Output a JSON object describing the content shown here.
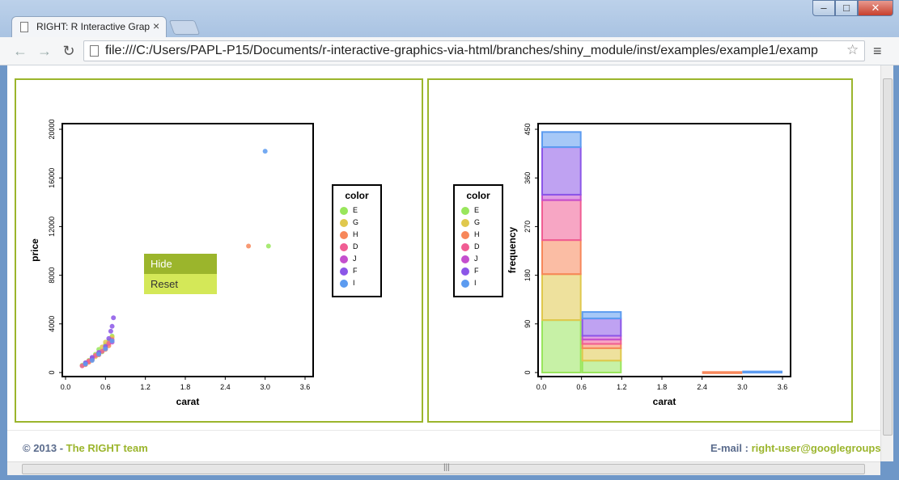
{
  "window": {
    "tab_title": "RIGHT: R Interactive Grapl",
    "url": "file:///C:/Users/PAPL-P15/Documents/r-interactive-graphics-via-html/branches/shiny_module/inst/examples/example1/examp"
  },
  "colors": {
    "E": "#99e65c",
    "G": "#e0c84d",
    "H": "#f7875a",
    "D": "#f05d93",
    "J": "#c44fce",
    "F": "#8b56e8",
    "I": "#5c9bf0",
    "panel_border": "#9bb52c",
    "footer_blue": "#5a6b8c",
    "footer_green": "#9bb52c"
  },
  "scatter": {
    "ylabel": "price",
    "xlabel": "carat",
    "legend_title": "color",
    "legend": [
      "E",
      "G",
      "H",
      "D",
      "J",
      "F",
      "I"
    ],
    "context_menu": {
      "hide": "Hide",
      "reset": "Reset"
    }
  },
  "histogram": {
    "ylabel": "frequency",
    "xlabel": "carat",
    "legend_title": "color",
    "legend": [
      "E",
      "G",
      "H",
      "D",
      "J",
      "F",
      "I"
    ]
  },
  "footer": {
    "copyright_prefix": "© 2013 - ",
    "team": "The RIGHT team",
    "email_label": "E-mail : ",
    "email": "right-user@googlegroups."
  },
  "chart_data": [
    {
      "type": "scatter",
      "xlabel": "carat",
      "ylabel": "price",
      "xlim": [
        0,
        3.6
      ],
      "ylim": [
        0,
        20000
      ],
      "x_ticks": [
        "0.0",
        "0.6",
        "1.2",
        "1.8",
        "2.4",
        "3.0",
        "3.6"
      ],
      "y_ticks": [
        "0",
        "4000",
        "8000",
        "12000",
        "16000",
        "20000"
      ],
      "legend_title": "color",
      "series": [
        {
          "name": "E",
          "points": [
            [
              0.25,
              600
            ],
            [
              0.3,
              800
            ],
            [
              0.35,
              1000
            ],
            [
              0.45,
              1500
            ],
            [
              0.55,
              1700
            ],
            [
              0.6,
              2300
            ],
            [
              0.65,
              2600
            ],
            [
              0.7,
              3000
            ],
            [
              0.4,
              1200
            ],
            [
              0.5,
              1900
            ],
            [
              3.05,
              10400
            ]
          ]
        },
        {
          "name": "G",
          "points": [
            [
              0.3,
              700
            ],
            [
              0.35,
              900
            ],
            [
              0.45,
              1300
            ],
            [
              0.5,
              1600
            ],
            [
              0.55,
              2100
            ],
            [
              0.6,
              2500
            ],
            [
              0.7,
              2900
            ],
            [
              0.4,
              1100
            ]
          ]
        },
        {
          "name": "H",
          "points": [
            [
              0.3,
              650
            ],
            [
              0.4,
              1050
            ],
            [
              0.5,
              1450
            ],
            [
              0.6,
              1900
            ],
            [
              0.65,
              2200
            ],
            [
              0.35,
              850
            ],
            [
              2.75,
              10400
            ]
          ]
        },
        {
          "name": "D",
          "points": [
            [
              0.25,
              550
            ],
            [
              0.35,
              950
            ],
            [
              0.45,
              1400
            ],
            [
              0.55,
              1750
            ],
            [
              0.65,
              2400
            ],
            [
              0.7,
              2700
            ]
          ]
        },
        {
          "name": "J",
          "points": [
            [
              0.3,
              750
            ],
            [
              0.4,
              1150
            ],
            [
              0.5,
              1550
            ],
            [
              0.6,
              2000
            ],
            [
              0.7,
              2500
            ]
          ]
        },
        {
          "name": "F",
          "points": [
            [
              0.3,
              800
            ],
            [
              0.4,
              1250
            ],
            [
              0.5,
              1650
            ],
            [
              0.6,
              2150
            ],
            [
              0.65,
              2800
            ],
            [
              0.7,
              3800
            ],
            [
              0.72,
              4500
            ],
            [
              0.68,
              3400
            ]
          ]
        },
        {
          "name": "I",
          "points": [
            [
              0.3,
              700
            ],
            [
              0.4,
              1000
            ],
            [
              0.5,
              1500
            ],
            [
              0.6,
              1950
            ],
            [
              0.7,
              2600
            ],
            [
              3.0,
              18200
            ]
          ]
        }
      ]
    },
    {
      "type": "bar",
      "stacked": true,
      "xlabel": "carat",
      "ylabel": "frequency",
      "xlim": [
        0,
        3.6
      ],
      "ylim": [
        0,
        450
      ],
      "x_ticks": [
        "0.0",
        "0.6",
        "1.2",
        "1.8",
        "2.4",
        "3.0",
        "3.6"
      ],
      "y_ticks": [
        "0",
        "90",
        "180",
        "270",
        "360",
        "450"
      ],
      "bins": [
        [
          0.0,
          0.6
        ],
        [
          0.6,
          1.2
        ],
        [
          2.4,
          3.0
        ],
        [
          3.0,
          3.6
        ]
      ],
      "series": [
        {
          "name": "E",
          "values": [
            97,
            22,
            0,
            0
          ]
        },
        {
          "name": "G",
          "values": [
            85,
            23,
            0,
            0
          ]
        },
        {
          "name": "H",
          "values": [
            63,
            8,
            1,
            0
          ]
        },
        {
          "name": "D",
          "values": [
            74,
            8,
            0,
            0
          ]
        },
        {
          "name": "J",
          "values": [
            10,
            7,
            0,
            0
          ]
        },
        {
          "name": "F",
          "values": [
            88,
            32,
            0,
            0
          ]
        },
        {
          "name": "I",
          "values": [
            28,
            12,
            0,
            2
          ]
        }
      ]
    }
  ]
}
